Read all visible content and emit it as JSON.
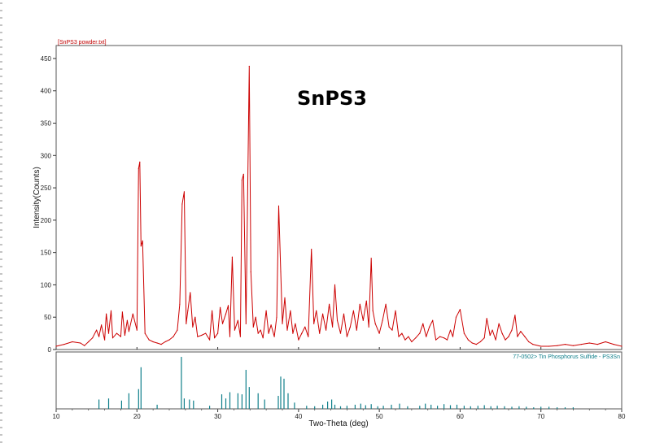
{
  "chart_data": [
    {
      "type": "line",
      "title": "SnPS3",
      "file_label": "[SnPS3 powder.txt]",
      "ylabel": "Intensity(Counts)",
      "xlabel": "Two-Theta (deg)",
      "xlim": [
        10,
        80
      ],
      "ylim": [
        0,
        460
      ],
      "x_ticks": [
        10,
        20,
        30,
        40,
        50,
        60,
        70,
        80
      ],
      "y_ticks": [
        0,
        50,
        100,
        150,
        200,
        250,
        300,
        350,
        400,
        450
      ],
      "grid": false,
      "color": "#cc0000",
      "series": [
        {
          "x": [
            10,
            11,
            12,
            13,
            13.5,
            14,
            14.5,
            15,
            15.3,
            15.6,
            16,
            16.2,
            16.5,
            16.8,
            17,
            17.5,
            18,
            18.2,
            18.5,
            18.8,
            19,
            19.5,
            20,
            20.2,
            20.35,
            20.5,
            20.7,
            21,
            21.5,
            22,
            22.5,
            23,
            23.5,
            24,
            24.5,
            25,
            25.3,
            25.6,
            25.85,
            26.1,
            26.3,
            26.6,
            26.9,
            27.2,
            27.5,
            28,
            28.5,
            29,
            29.3,
            29.6,
            30,
            30.3,
            30.6,
            31,
            31.3,
            31.5,
            31.8,
            32.1,
            32.5,
            32.8,
            33,
            33.2,
            33.5,
            33.9,
            34.1,
            34.4,
            34.7,
            35,
            35.3,
            35.6,
            36,
            36.3,
            36.6,
            37,
            37.3,
            37.55,
            37.8,
            38,
            38.3,
            38.6,
            39,
            39.3,
            39.6,
            40,
            40.4,
            40.8,
            41.2,
            41.6,
            41.9,
            42.2,
            42.6,
            43,
            43.4,
            43.8,
            44.2,
            44.5,
            44.8,
            45.2,
            45.6,
            46,
            46.4,
            46.8,
            47.2,
            47.6,
            48,
            48.4,
            48.7,
            49,
            49.2,
            49.5,
            50,
            50.4,
            50.8,
            51.2,
            51.6,
            52,
            52.4,
            52.8,
            53.2,
            53.6,
            54,
            54.5,
            55,
            55.4,
            55.8,
            56.2,
            56.6,
            57,
            57.5,
            58,
            58.4,
            58.8,
            59.1,
            59.5,
            60,
            60.5,
            61,
            61.5,
            62,
            62.5,
            63,
            63.3,
            63.7,
            64,
            64.4,
            64.8,
            65.2,
            65.6,
            66,
            66.4,
            66.8,
            67.1,
            67.5,
            68,
            68.5,
            69,
            70,
            71,
            72,
            73,
            74,
            75,
            76,
            77,
            78,
            79,
            80
          ],
          "y": [
            5,
            8,
            12,
            10,
            6,
            12,
            18,
            30,
            20,
            38,
            15,
            55,
            25,
            60,
            18,
            25,
            20,
            58,
            22,
            45,
            28,
            55,
            30,
            280,
            290,
            160,
            168,
            25,
            15,
            12,
            10,
            8,
            12,
            15,
            20,
            30,
            70,
            225,
            244,
            40,
            60,
            88,
            35,
            50,
            20,
            22,
            25,
            15,
            60,
            18,
            25,
            65,
            40,
            55,
            68,
            20,
            143,
            30,
            45,
            20,
            262,
            271,
            40,
            438,
            120,
            35,
            50,
            25,
            30,
            18,
            60,
            25,
            38,
            20,
            50,
            222,
            120,
            40,
            80,
            30,
            60,
            25,
            40,
            15,
            25,
            35,
            20,
            155,
            40,
            60,
            25,
            55,
            30,
            70,
            35,
            100,
            45,
            25,
            55,
            20,
            35,
            60,
            30,
            70,
            45,
            75,
            35,
            141,
            60,
            40,
            25,
            45,
            70,
            35,
            30,
            60,
            20,
            25,
            15,
            20,
            12,
            18,
            25,
            40,
            20,
            35,
            45,
            15,
            20,
            18,
            15,
            30,
            20,
            50,
            62,
            25,
            15,
            10,
            8,
            12,
            18,
            48,
            22,
            30,
            15,
            40,
            25,
            15,
            20,
            30,
            53,
            20,
            28,
            20,
            12,
            8,
            5,
            5,
            6,
            8,
            6,
            8,
            10,
            8,
            12,
            8,
            5
          ]
        }
      ]
    },
    {
      "type": "bar",
      "label": "77-0502> Tin Phosphorus Sulfide - PS3Sn",
      "xlim": [
        10,
        80
      ],
      "ylim": [
        0,
        100
      ],
      "color": "#0f7f8a",
      "x": [
        15.3,
        16.5,
        18.1,
        19.0,
        20.2,
        20.5,
        22.5,
        25.5,
        25.85,
        26.5,
        27.0,
        29.0,
        30.5,
        31.0,
        31.5,
        32.5,
        33.0,
        33.5,
        33.9,
        35.0,
        35.8,
        37.5,
        37.8,
        38.2,
        38.7,
        39.5,
        41.0,
        42.0,
        43.0,
        43.6,
        44.1,
        44.5,
        45.2,
        46.0,
        47.0,
        47.7,
        48.3,
        49.0,
        49.8,
        50.5,
        51.5,
        52.5,
        53.5,
        55.0,
        55.7,
        56.4,
        57.2,
        58.0,
        58.8,
        59.6,
        60.5,
        61.3,
        62.2,
        63.0,
        63.8,
        64.6,
        65.5,
        66.4,
        67.3,
        68.2,
        69.1,
        70.0,
        71.0,
        72.0,
        73.0,
        74.0
      ],
      "values": [
        18,
        20,
        16,
        30,
        38,
        80,
        8,
        100,
        20,
        18,
        16,
        6,
        28,
        20,
        32,
        30,
        28,
        75,
        42,
        30,
        18,
        25,
        62,
        58,
        30,
        12,
        6,
        5,
        8,
        14,
        18,
        8,
        5,
        6,
        8,
        10,
        7,
        9,
        5,
        6,
        8,
        10,
        5,
        6,
        10,
        8,
        6,
        9,
        7,
        8,
        6,
        5,
        6,
        7,
        5,
        6,
        5,
        4,
        5,
        4,
        3,
        4,
        4,
        3,
        3,
        3
      ]
    }
  ]
}
